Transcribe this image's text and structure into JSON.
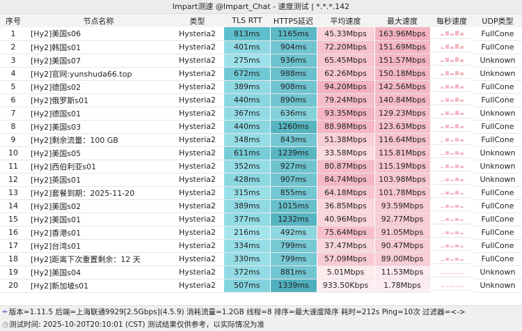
{
  "window": {
    "title": "Impart测速 @Impart_Chat - 速度测试 | *.*.*.142"
  },
  "columns": [
    "序号",
    "节点名称",
    "类型",
    "TLS RTT",
    "HTTPS延迟",
    "平均速度",
    "最大速度",
    "每秒速度",
    "UDP类型"
  ],
  "rows": [
    [
      "1",
      "[Hy2]美国s06",
      "Hysteria2",
      "813ms",
      "1165ms",
      "45.33Mbps",
      "163.96Mbps",
      "FullCone"
    ],
    [
      "2",
      "[Hy2]韩国s01",
      "Hysteria2",
      "401ms",
      "904ms",
      "72.20Mbps",
      "151.69Mbps",
      "FullCone"
    ],
    [
      "3",
      "[Hy2]美国s07",
      "Hysteria2",
      "275ms",
      "936ms",
      "65.45Mbps",
      "151.57Mbps",
      "Unknown"
    ],
    [
      "4",
      "[Hy2]官网:yunshuda66.top",
      "Hysteria2",
      "672ms",
      "988ms",
      "62.26Mbps",
      "150.18Mbps",
      "Unknown"
    ],
    [
      "5",
      "[Hy2]德国s02",
      "Hysteria2",
      "389ms",
      "908ms",
      "94.20Mbps",
      "142.56Mbps",
      "FullCone"
    ],
    [
      "6",
      "[Hy2]俄罗斯s01",
      "Hysteria2",
      "440ms",
      "890ms",
      "79.24Mbps",
      "140.84Mbps",
      "FullCone"
    ],
    [
      "7",
      "[Hy2]德国s01",
      "Hysteria2",
      "367ms",
      "636ms",
      "93.35Mbps",
      "129.23Mbps",
      "Unknown"
    ],
    [
      "8",
      "[Hy2]美国s03",
      "Hysteria2",
      "440ms",
      "1260ms",
      "88.98Mbps",
      "123.63Mbps",
      "FullCone"
    ],
    [
      "9",
      "[Hy2]剩余流量：100 GB",
      "Hysteria2",
      "348ms",
      "843ms",
      "51.38Mbps",
      "116.64Mbps",
      "FullCone"
    ],
    [
      "10",
      "[Hy2]美国s05",
      "Hysteria2",
      "611ms",
      "1239ms",
      "33.58Mbps",
      "115.81Mbps",
      "Unknown"
    ],
    [
      "11",
      "[Hy2]西伯利亚s01",
      "Hysteria2",
      "352ms",
      "927ms",
      "80.87Mbps",
      "115.19Mbps",
      "Unknown"
    ],
    [
      "12",
      "[Hy2]英国s01",
      "Hysteria2",
      "428ms",
      "907ms",
      "84.74Mbps",
      "103.98Mbps",
      "Unknown"
    ],
    [
      "13",
      "[Hy2]套餐到期：2025-11-20",
      "Hysteria2",
      "315ms",
      "855ms",
      "64.18Mbps",
      "101.78Mbps",
      "FullCone"
    ],
    [
      "14",
      "[Hy2]美国s02",
      "Hysteria2",
      "389ms",
      "1015ms",
      "36.85Mbps",
      "93.59Mbps",
      "FullCone"
    ],
    [
      "15",
      "[Hy2]美国s01",
      "Hysteria2",
      "377ms",
      "1232ms",
      "40.96Mbps",
      "92.77Mbps",
      "FullCone"
    ],
    [
      "16",
      "[Hy2]香港s01",
      "Hysteria2",
      "216ms",
      "492ms",
      "75.64Mbps",
      "91.05Mbps",
      "FullCone"
    ],
    [
      "17",
      "[Hy2]台湾s01",
      "Hysteria2",
      "334ms",
      "799ms",
      "37.47Mbps",
      "90.47Mbps",
      "FullCone"
    ],
    [
      "18",
      "[Hy2]距离下次重置剩余：12 天",
      "Hysteria2",
      "330ms",
      "799ms",
      "57.09Mbps",
      "89.00Mbps",
      "FullCone"
    ],
    [
      "19",
      "[Hy2]美国s04",
      "Hysteria2",
      "372ms",
      "881ms",
      "5.01Mbps",
      "11.53Mbps",
      "Unknown"
    ],
    [
      "20",
      "[Hy2]新加坡s01",
      "Hysteria2",
      "507ms",
      "1339ms",
      "933.50Kbps",
      "1.78Mbps",
      "Unknown"
    ]
  ],
  "colors": {
    "latency": "#5cc3cf",
    "speed": "#f6bfca",
    "title_bg": "#ececec"
  },
  "footer": {
    "line1": "版本=1.11.5  后端=上海联通9929[2.5Gbps](4.5.9) 消耗流量=1.2GB  线程=8  排序=最大速度降序  耗时=212s  Ping=10次  过滤器=<->",
    "line2": "测试时间: 2025-10-20T20:10:01 (CST)  测试结果仅供参考，以实际情况为准",
    "icon1": "feather-icon",
    "icon2": "clock-icon"
  }
}
